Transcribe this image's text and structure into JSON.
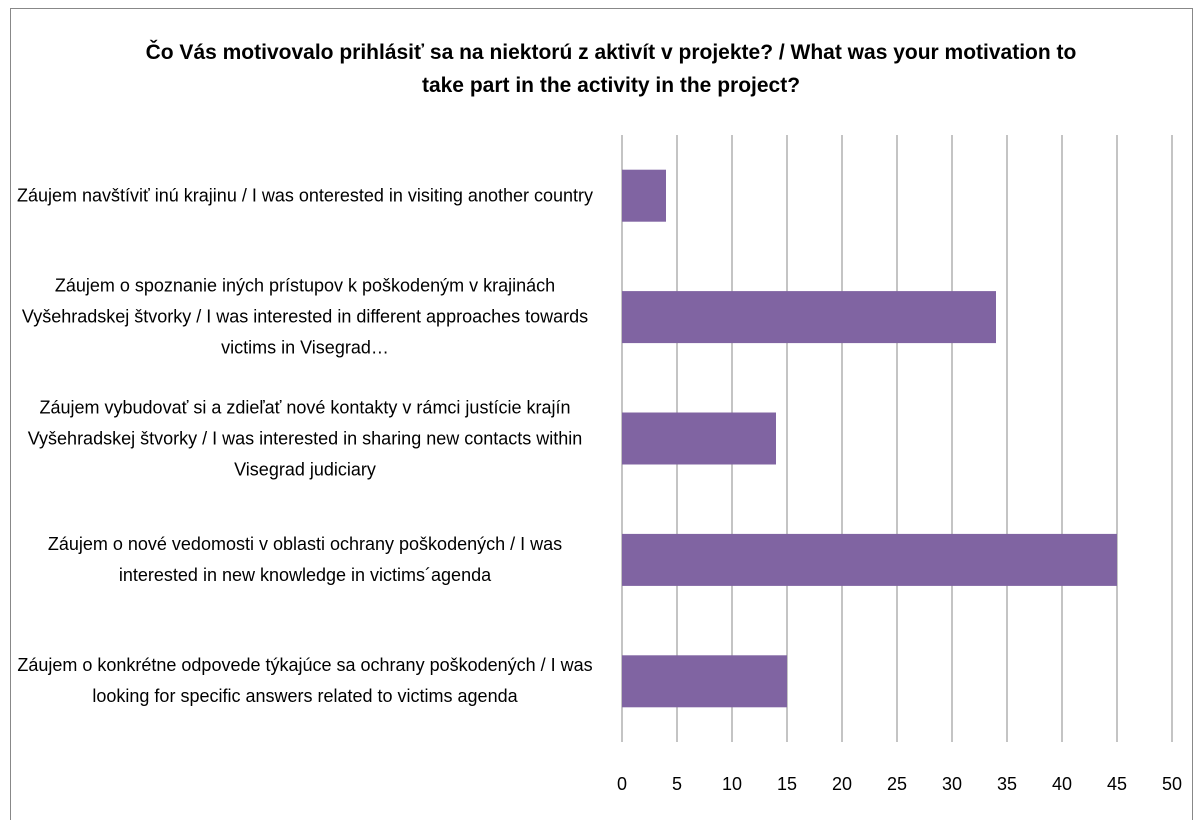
{
  "chart_data": {
    "type": "bar",
    "orientation": "horizontal",
    "title": "Čo Vás motivovalo prihlásiť sa na niektorú z aktivít  v projekte? / What was your motivation to take part in the activity in the project?",
    "categories": [
      "Záujem navštíviť inú krajinu / I was onterested in visiting another country",
      "Záujem o spoznanie iných prístupov k poškodeným v krajinách Vyšehradskej štvorky /  I was interested in different approaches towards victims in Visegrad…",
      "Záujem vybudovať si a zdieľať nové kontakty v rámci justície krajín Vyšehradskej štvorky / I was interested in sharing new contacts within Visegrad judiciary",
      "Záujem o nové vedomosti v oblasti ochrany poškodených / I was interested in new knowledge in victims´agenda",
      "Záujem o konkrétne odpovede týkajúce sa ochrany poškodených / I was looking for specific answers related to victims agenda"
    ],
    "values": [
      4,
      34,
      14,
      45,
      15
    ],
    "color": "#8064a2",
    "xlim": [
      0,
      50
    ],
    "xticks": [
      0,
      5,
      10,
      15,
      20,
      25,
      30,
      35,
      40,
      45,
      50
    ],
    "grid": true
  }
}
